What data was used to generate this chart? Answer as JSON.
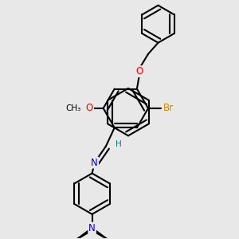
{
  "bg_color": "#e8e8e8",
  "bond_color": "#000000",
  "bond_width": 1.5,
  "atom_colors": {
    "O": "#ff0000",
    "Br": "#cc8800",
    "N": "#0000ff",
    "H": "#008080",
    "C": "#000000"
  },
  "font_size": 8.5
}
